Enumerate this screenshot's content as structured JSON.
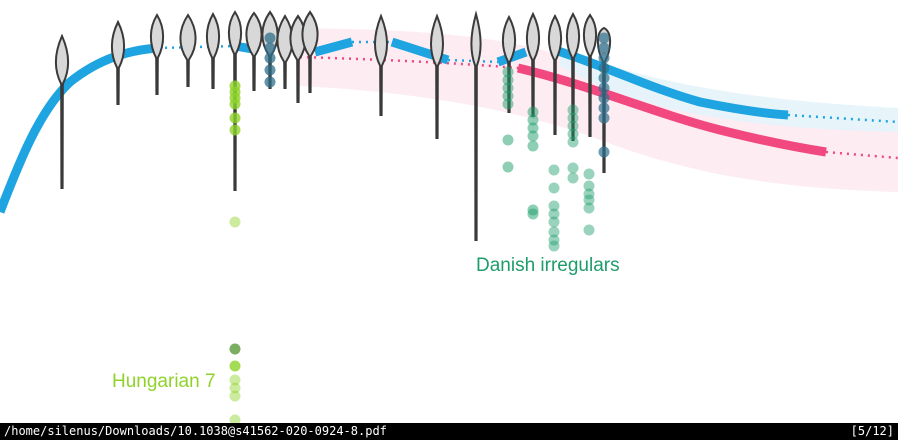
{
  "document": {
    "labels": {
      "danish": "Danish irregulars",
      "hungarian": "Hungarian 7"
    }
  },
  "colors": {
    "blue": "#1ea4e0",
    "pink": "#f0487f",
    "pink_band": "#fde7ef",
    "blue_band": "#e4f4fb",
    "violin": "#3a3a3a",
    "violin_fill": "#d8d8d8",
    "green_light": "#8fd32a",
    "green_dark": "#1e9d6c",
    "teal": "#2d6f8c",
    "status_bg": "#000000",
    "status_fg": "#ffffff"
  },
  "statusbar": {
    "path": "/home/silenus/Downloads/10.1038@s41562-020-0924-8.pdf",
    "page": "[5/12]"
  }
}
